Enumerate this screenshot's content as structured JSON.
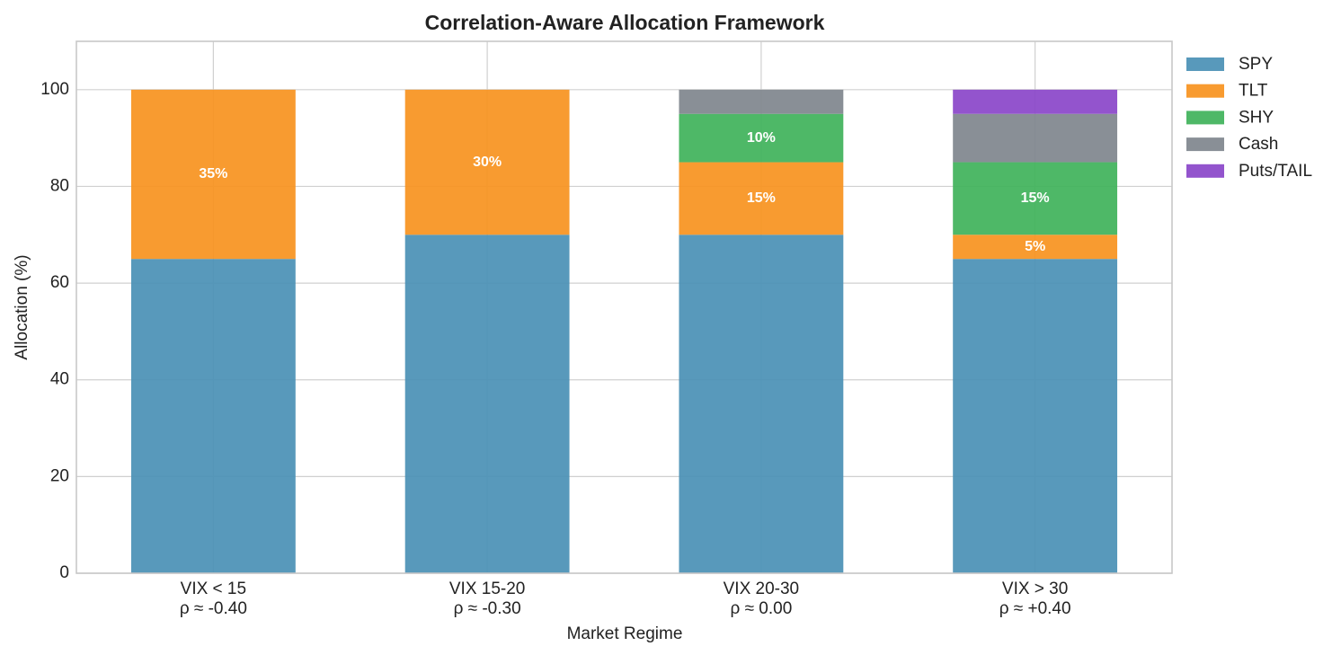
{
  "chart_data": {
    "type": "bar",
    "stacked": true,
    "title": "Correlation-Aware Allocation Framework",
    "xlabel": "Market Regime",
    "ylabel": "Allocation (%)",
    "ylim": [
      0,
      110
    ],
    "yticks": [
      0,
      20,
      40,
      60,
      80,
      100
    ],
    "grid": true,
    "legend_position": "outside-right",
    "categories": [
      [
        "VIX < 15",
        "ρ ≈ -0.40"
      ],
      [
        "VIX 15-20",
        "ρ ≈ -0.30"
      ],
      [
        "VIX 20-30",
        "ρ ≈ 0.00"
      ],
      [
        "VIX > 30",
        "ρ ≈ +0.40"
      ]
    ],
    "series": [
      {
        "name": "SPY",
        "color": "#4a90b5",
        "values": [
          65,
          70,
          70,
          65
        ]
      },
      {
        "name": "TLT",
        "color": "#f7931e",
        "values": [
          35,
          30,
          15,
          5
        ]
      },
      {
        "name": "SHY",
        "color": "#3fb25a",
        "values": [
          0,
          0,
          10,
          15
        ]
      },
      {
        "name": "Cash",
        "color": "#7f868d",
        "values": [
          0,
          0,
          5,
          10
        ]
      },
      {
        "name": "Puts/TAIL",
        "color": "#8a45c9",
        "values": [
          0,
          0,
          0,
          5
        ]
      }
    ],
    "data_labels": [
      {
        "series": "TLT",
        "category": 0,
        "text": "35%"
      },
      {
        "series": "TLT",
        "category": 1,
        "text": "30%"
      },
      {
        "series": "TLT",
        "category": 2,
        "text": "15%"
      },
      {
        "series": "SHY",
        "category": 2,
        "text": "10%"
      },
      {
        "series": "TLT",
        "category": 3,
        "text": "5%"
      },
      {
        "series": "SHY",
        "category": 3,
        "text": "15%"
      }
    ]
  }
}
